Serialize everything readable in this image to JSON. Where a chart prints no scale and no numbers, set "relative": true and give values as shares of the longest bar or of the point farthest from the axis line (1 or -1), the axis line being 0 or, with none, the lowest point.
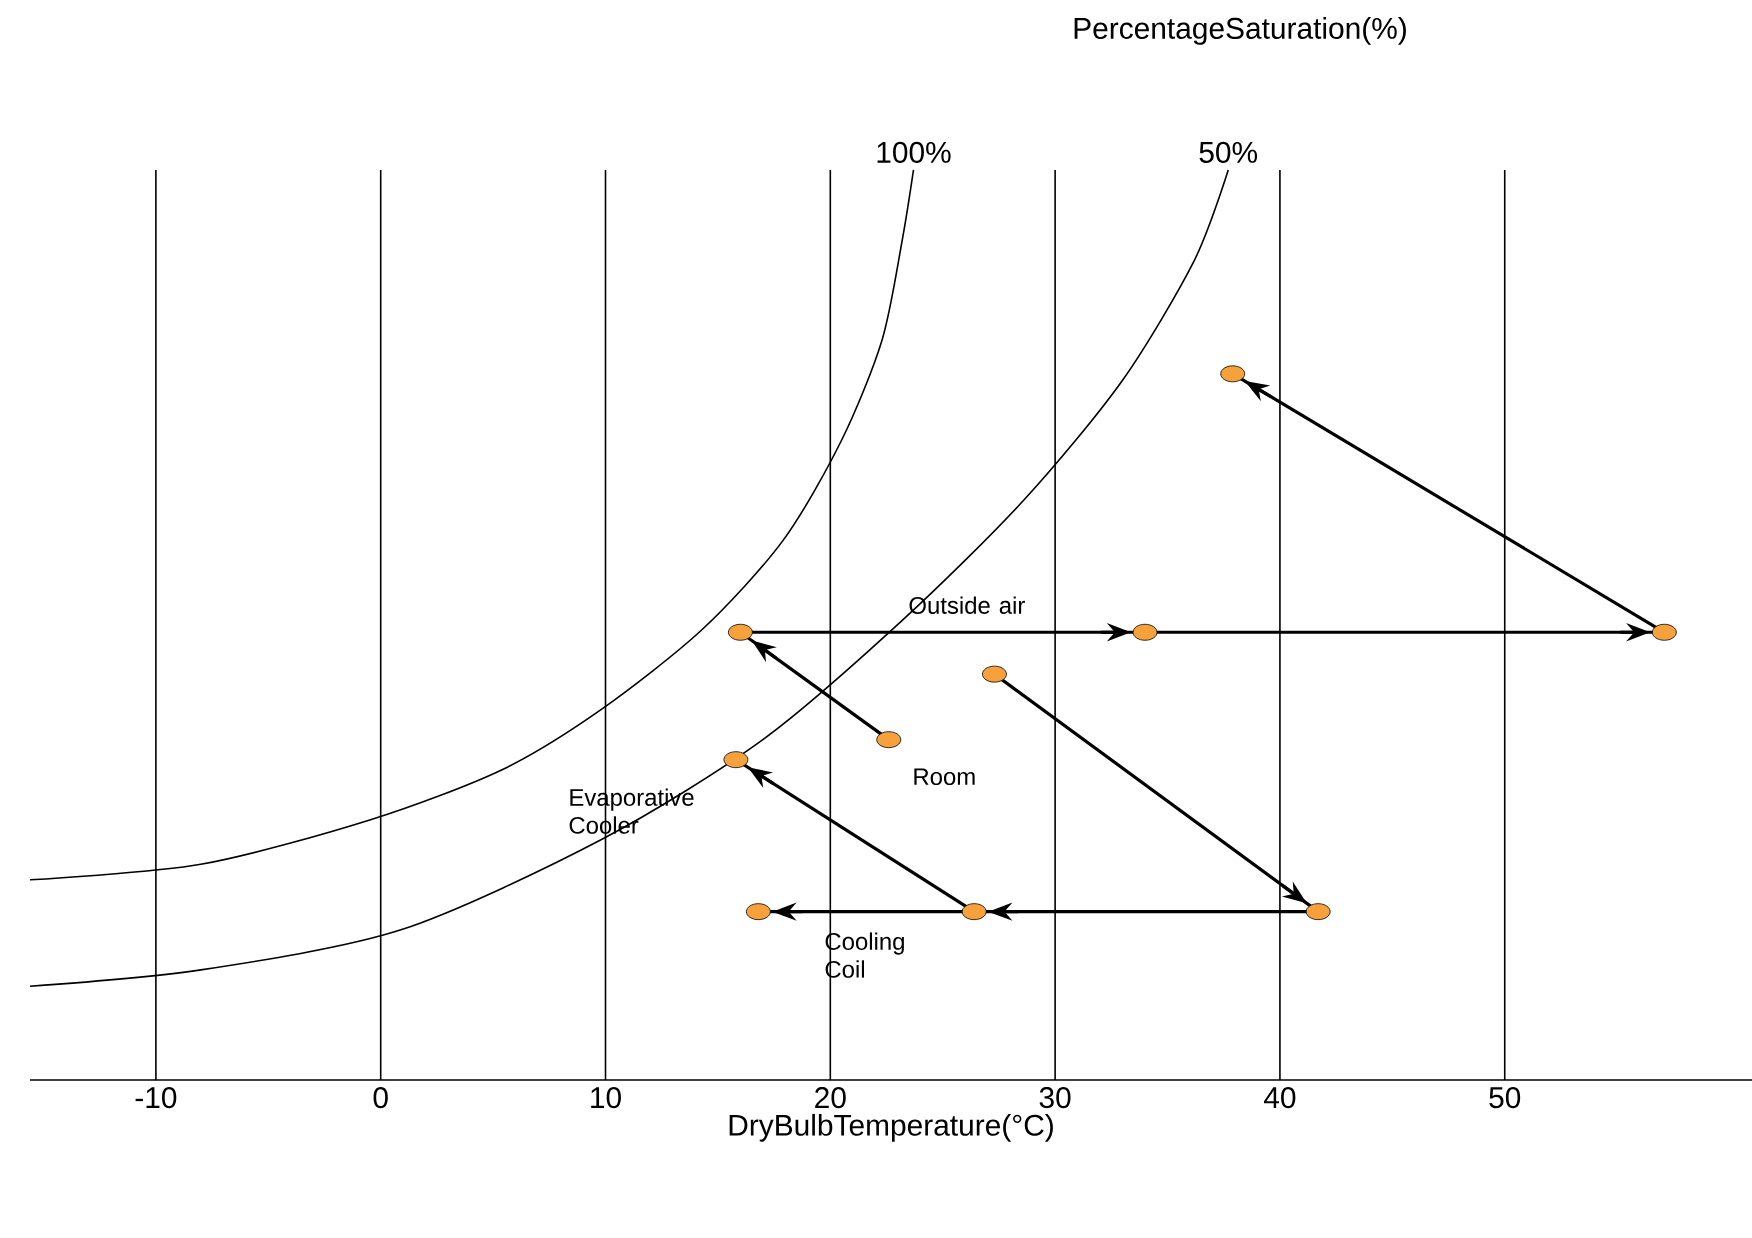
{
  "chart_data": {
    "type": "scatter",
    "title": "PercentageSaturation(%)",
    "xlabel": "DryBulbTemperature(°C)",
    "relative": true,
    "xlim": [
      -15.6,
      61
    ],
    "xticks": [
      -10,
      0,
      10,
      20,
      30,
      40,
      50
    ],
    "grid": "x",
    "tick_labels": "x",
    "series": [
      {
        "type": "line",
        "name": "100%",
        "marker": "none",
        "color": "#000000",
        "x": [
          -15.6,
          -8.0,
          -0.45,
          5.4,
          9.8,
          14.3,
          17.9,
          20.5,
          22.3,
          23.2,
          23.7
        ],
        "values": [
          0.22,
          0.237,
          0.286,
          0.341,
          0.407,
          0.495,
          0.593,
          0.703,
          0.813,
          0.923,
          1.0
        ]
      },
      {
        "type": "line",
        "name": "50%",
        "marker": "none",
        "color": "#000000",
        "x": [
          -15.6,
          -8.0,
          0.9,
          9.8,
          17.0,
          23.2,
          28.6,
          33.0,
          36.2,
          37.7
        ],
        "values": [
          0.103,
          0.121,
          0.165,
          0.264,
          0.374,
          0.505,
          0.637,
          0.769,
          0.901,
          1.0
        ]
      },
      {
        "type": "line",
        "marker": "none",
        "color": "#000000",
        "x": [
          57.1,
          37.9
        ],
        "values": [
          0.492,
          0.776
        ]
      },
      {
        "type": "line",
        "marker": "none",
        "color": "#000000",
        "x": [
          16.0,
          34.0
        ],
        "values": [
          0.492,
          0.492
        ]
      },
      {
        "type": "line",
        "marker": "none",
        "color": "#000000",
        "x": [
          34.0,
          57.1
        ],
        "values": [
          0.492,
          0.492
        ]
      },
      {
        "type": "line",
        "marker": "none",
        "color": "#000000",
        "x": [
          27.3,
          41.7
        ],
        "values": [
          0.446,
          0.185
        ]
      },
      {
        "type": "line",
        "marker": "none",
        "color": "#000000",
        "x": [
          22.6,
          16.0
        ],
        "values": [
          0.374,
          0.492
        ]
      },
      {
        "type": "line",
        "marker": "none",
        "color": "#000000",
        "x": [
          41.7,
          26.4
        ],
        "values": [
          0.185,
          0.185
        ]
      },
      {
        "type": "line",
        "marker": "none",
        "color": "#000000",
        "x": [
          26.4,
          16.8
        ],
        "values": [
          0.185,
          0.185
        ]
      },
      {
        "type": "line",
        "marker": "none",
        "color": "#000000",
        "x": [
          26.4,
          15.8
        ],
        "values": [
          0.185,
          0.352
        ]
      },
      {
        "marker": "circle",
        "color": "#f7a13d",
        "x": [
          37.9,
          57.1,
          34.0,
          16.0,
          27.3,
          22.6,
          15.8,
          41.7,
          26.4,
          16.8
        ],
        "values": [
          0.776,
          0.492,
          0.492,
          0.492,
          0.446,
          0.374,
          0.352,
          0.185,
          0.185,
          0.185
        ]
      }
    ],
    "annotations": [
      "Outside air",
      "Room",
      "Evaporative Cooler",
      "Cooling Coil"
    ]
  }
}
